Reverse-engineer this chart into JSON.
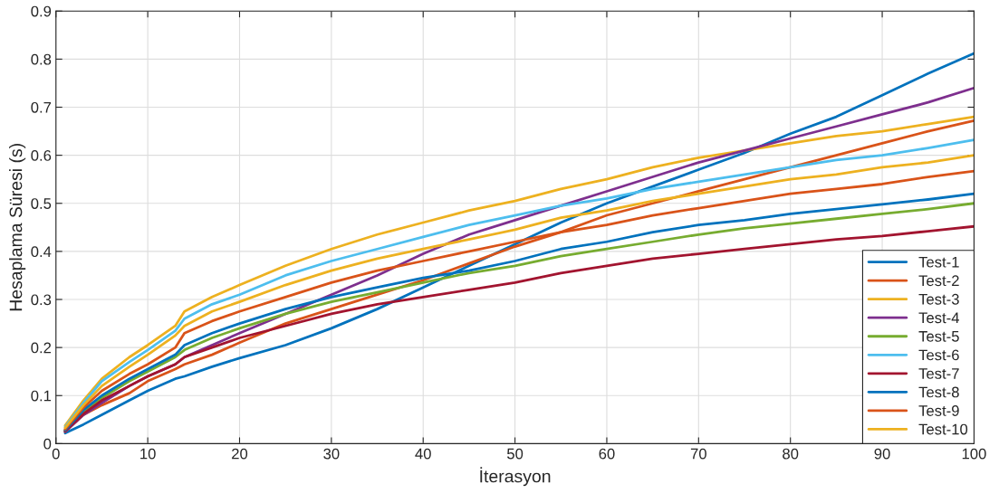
{
  "chart_data": {
    "type": "line",
    "xlabel": "İterasyon",
    "ylabel": "Hesaplama Süresi (s)",
    "x": [
      1,
      3,
      5,
      8,
      10,
      13,
      14,
      17,
      20,
      25,
      30,
      35,
      40,
      45,
      50,
      55,
      60,
      65,
      70,
      75,
      80,
      85,
      90,
      95,
      100
    ],
    "xlim": [
      0,
      100
    ],
    "xticks": [
      0,
      10,
      20,
      30,
      40,
      50,
      60,
      70,
      80,
      90,
      100
    ],
    "ylim": [
      0,
      0.9
    ],
    "yticks": [
      0,
      0.1,
      0.2,
      0.3,
      0.4,
      0.5,
      0.6,
      0.7,
      0.8,
      0.9
    ],
    "grid": true,
    "legend": "bottom right",
    "marker": "none",
    "line_style": "solid",
    "series": [
      {
        "name": "Test-1",
        "color": "#0072bd",
        "values": [
          0.022,
          0.04,
          0.06,
          0.09,
          0.11,
          0.135,
          0.14,
          0.16,
          0.178,
          0.205,
          0.24,
          0.28,
          0.325,
          0.37,
          0.415,
          0.46,
          0.5,
          0.535,
          0.57,
          0.605,
          0.645,
          0.68,
          0.725,
          0.77,
          0.812
        ]
      },
      {
        "name": "Test-2",
        "color": "#d95319",
        "values": [
          0.025,
          0.06,
          0.08,
          0.105,
          0.13,
          0.155,
          0.165,
          0.185,
          0.21,
          0.25,
          0.28,
          0.31,
          0.34,
          0.375,
          0.41,
          0.44,
          0.475,
          0.5,
          0.525,
          0.55,
          0.575,
          0.6,
          0.625,
          0.65,
          0.672
        ]
      },
      {
        "name": "Test-3",
        "color": "#edb120",
        "values": [
          0.038,
          0.09,
          0.135,
          0.18,
          0.205,
          0.245,
          0.275,
          0.305,
          0.33,
          0.37,
          0.405,
          0.435,
          0.46,
          0.485,
          0.505,
          0.53,
          0.55,
          0.575,
          0.595,
          0.61,
          0.625,
          0.64,
          0.65,
          0.665,
          0.68
        ]
      },
      {
        "name": "Test-4",
        "color": "#7e2f8e",
        "values": [
          0.025,
          0.06,
          0.085,
          0.12,
          0.14,
          0.165,
          0.18,
          0.205,
          0.23,
          0.27,
          0.31,
          0.35,
          0.395,
          0.435,
          0.465,
          0.495,
          0.525,
          0.555,
          0.585,
          0.61,
          0.635,
          0.66,
          0.685,
          0.71,
          0.74
        ]
      },
      {
        "name": "Test-5",
        "color": "#77ac30",
        "values": [
          0.027,
          0.065,
          0.095,
          0.13,
          0.15,
          0.18,
          0.195,
          0.22,
          0.24,
          0.27,
          0.295,
          0.315,
          0.335,
          0.355,
          0.37,
          0.39,
          0.405,
          0.42,
          0.435,
          0.448,
          0.458,
          0.468,
          0.478,
          0.488,
          0.5
        ]
      },
      {
        "name": "Test-6",
        "color": "#4dbeee",
        "values": [
          0.035,
          0.085,
          0.13,
          0.17,
          0.195,
          0.235,
          0.26,
          0.29,
          0.31,
          0.35,
          0.38,
          0.405,
          0.43,
          0.455,
          0.475,
          0.495,
          0.51,
          0.53,
          0.545,
          0.56,
          0.575,
          0.59,
          0.6,
          0.615,
          0.632
        ]
      },
      {
        "name": "Test-7",
        "color": "#a2142f",
        "values": [
          0.026,
          0.062,
          0.09,
          0.12,
          0.14,
          0.165,
          0.18,
          0.2,
          0.22,
          0.245,
          0.27,
          0.29,
          0.305,
          0.32,
          0.335,
          0.355,
          0.37,
          0.385,
          0.395,
          0.405,
          0.415,
          0.425,
          0.432,
          0.442,
          0.452
        ]
      },
      {
        "name": "Test-8",
        "color": "#0072bd",
        "values": [
          0.028,
          0.07,
          0.1,
          0.135,
          0.155,
          0.185,
          0.205,
          0.23,
          0.25,
          0.28,
          0.305,
          0.325,
          0.345,
          0.36,
          0.38,
          0.405,
          0.42,
          0.44,
          0.455,
          0.465,
          0.478,
          0.488,
          0.498,
          0.508,
          0.52
        ]
      },
      {
        "name": "Test-9",
        "color": "#d95319",
        "values": [
          0.03,
          0.075,
          0.11,
          0.145,
          0.165,
          0.2,
          0.23,
          0.255,
          0.275,
          0.305,
          0.335,
          0.36,
          0.38,
          0.4,
          0.42,
          0.44,
          0.455,
          0.475,
          0.49,
          0.505,
          0.52,
          0.53,
          0.54,
          0.555,
          0.567
        ]
      },
      {
        "name": "Test-10",
        "color": "#edb120",
        "values": [
          0.033,
          0.08,
          0.12,
          0.16,
          0.185,
          0.225,
          0.245,
          0.275,
          0.295,
          0.33,
          0.36,
          0.385,
          0.405,
          0.425,
          0.445,
          0.47,
          0.485,
          0.505,
          0.52,
          0.535,
          0.55,
          0.56,
          0.575,
          0.585,
          0.6
        ]
      }
    ]
  }
}
